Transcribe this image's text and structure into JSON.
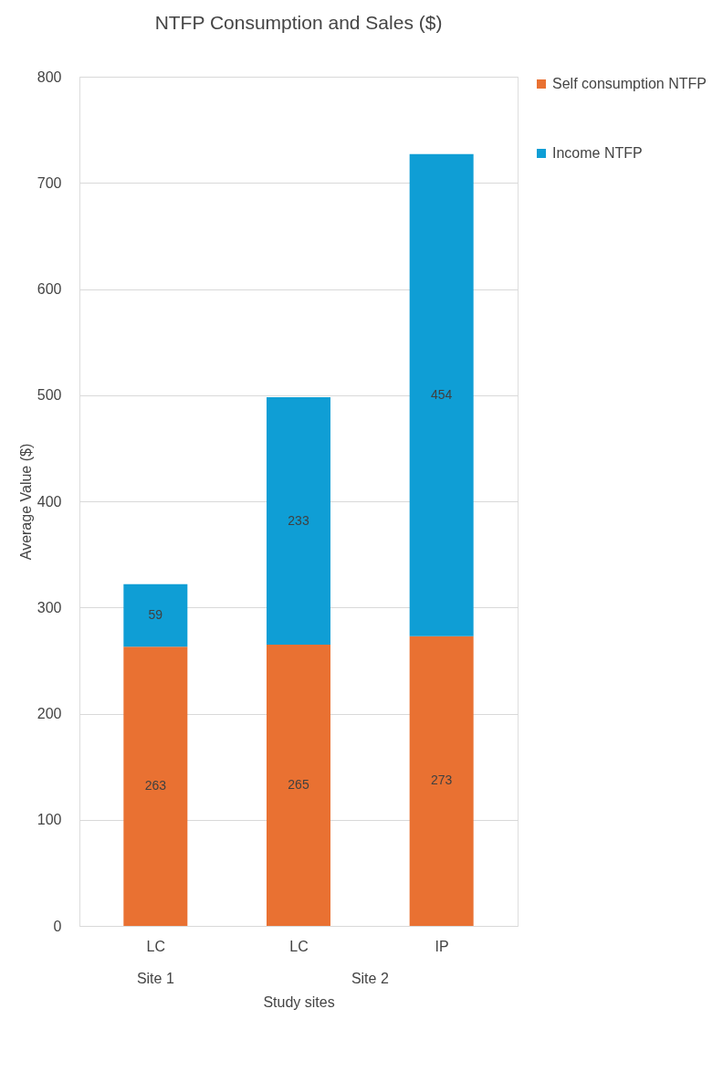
{
  "chart_data": {
    "type": "bar",
    "title": "NTFP Consumption and Sales ($)",
    "xlabel": "Study sites",
    "ylabel": "Average Value ($)",
    "categories": [
      "LC",
      "LC",
      "IP"
    ],
    "series": [
      {
        "name": "Self consumption NTFP",
        "color": "#e97132",
        "values": [
          263,
          265,
          273
        ]
      },
      {
        "name": "Income NTFP",
        "color": "#0f9ed5",
        "values": [
          59,
          233,
          454
        ]
      }
    ],
    "stacked": true,
    "data_labels": true,
    "ylim": [
      0,
      800
    ],
    "yticks": [
      0,
      100,
      200,
      300,
      400,
      500,
      600,
      700,
      800
    ],
    "grid": "y",
    "legend": "right",
    "annotations": [
      "Site 1",
      "Site 2"
    ]
  }
}
